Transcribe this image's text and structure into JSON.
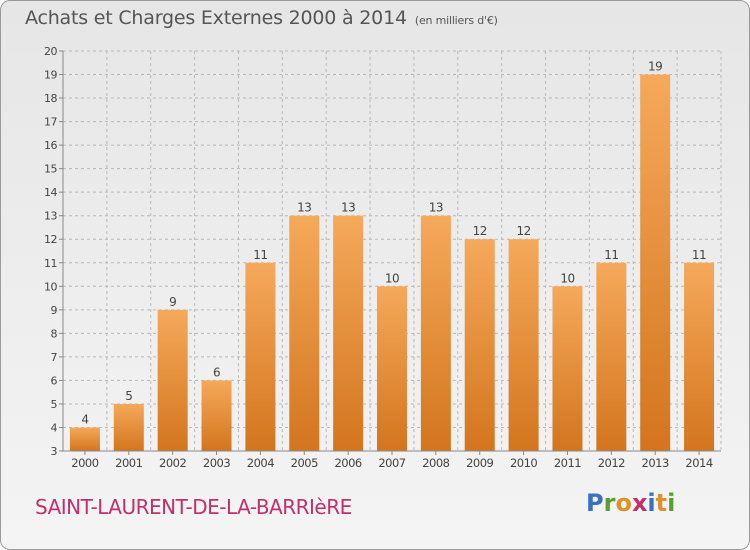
{
  "header": {
    "title": "Achats et Charges Externes 2000 à 2014",
    "unit": "(en milliers d'€)"
  },
  "footer": {
    "commune": "SAINT-LAURENT-DE-LA-BARRIèRE",
    "logo": "Proxiti",
    "logo_letter_colors": [
      "#3a6fc2",
      "#5aa02c",
      "#e0902a",
      "#c0306a",
      "#3a6fc2",
      "#e0902a",
      "#5aa02c"
    ]
  },
  "colors": {
    "bar_top": "#f5a95a",
    "bar_bottom": "#d3751e",
    "grid": "#b8b8b8",
    "text": "#444444",
    "commune": "#c0306a"
  },
  "chart_data": {
    "type": "bar",
    "categories": [
      "2000",
      "2001",
      "2002",
      "2003",
      "2004",
      "2005",
      "2006",
      "2007",
      "2008",
      "2009",
      "2010",
      "2011",
      "2012",
      "2013",
      "2014"
    ],
    "values": [
      4,
      5,
      9,
      6,
      11,
      13,
      13,
      10,
      13,
      12,
      12,
      10,
      11,
      19,
      11
    ],
    "data_labels": [
      "4",
      "5",
      "9",
      "6",
      "11",
      "13",
      "13",
      "10",
      "13",
      "12",
      "12",
      "10",
      "11",
      "19",
      "11"
    ],
    "title": "Achats et Charges Externes 2000 à 2014",
    "subtitle": "(en milliers d'€)",
    "xlabel": "",
    "ylabel": "",
    "ylim": [
      3,
      20
    ],
    "yticks": [
      3,
      4,
      5,
      6,
      7,
      8,
      9,
      10,
      11,
      12,
      13,
      14,
      15,
      16,
      17,
      18,
      19,
      20
    ],
    "grid": true
  }
}
